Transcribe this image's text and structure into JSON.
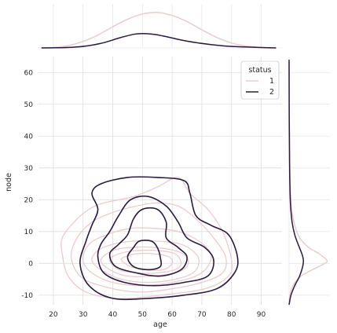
{
  "chart_data": {
    "type": "kde-joint",
    "xlabel": "age",
    "ylabel": "node",
    "xlim": [
      15,
      97
    ],
    "ylim": [
      -13,
      65
    ],
    "xticks": [
      20,
      30,
      40,
      50,
      60,
      70,
      80,
      90
    ],
    "yticks": [
      -10,
      0,
      10,
      20,
      30,
      40,
      50,
      60
    ],
    "grid": true,
    "legend": {
      "title": "status",
      "placement": "top-right",
      "entries": [
        "1",
        "2"
      ]
    },
    "colors": {
      "1": "#ebcccc",
      "2": "#2b1a3f"
    },
    "series": [
      {
        "name": "1",
        "contours": [
          [
            [
              23,
              3
            ],
            [
              25,
              -4
            ],
            [
              31,
              -9
            ],
            [
              42,
              -11
            ],
            [
              56,
              -10
            ],
            [
              71,
              -8
            ],
            [
              79,
              -4
            ],
            [
              80,
              1
            ],
            [
              77,
              10
            ],
            [
              72,
              17
            ],
            [
              66,
              22
            ],
            [
              62,
              27
            ],
            [
              55,
              24
            ],
            [
              47,
              21
            ],
            [
              37,
              19
            ],
            [
              32,
              17
            ],
            [
              27,
              13
            ],
            [
              23,
              8
            ]
          ],
          [
            [
              26,
              2
            ],
            [
              29,
              -4
            ],
            [
              36,
              -7
            ],
            [
              48,
              -9
            ],
            [
              60,
              -8
            ],
            [
              70,
              -6
            ],
            [
              77,
              -3
            ],
            [
              78,
              2
            ],
            [
              74,
              8
            ],
            [
              68,
              14
            ],
            [
              62,
              18
            ],
            [
              55,
              19
            ],
            [
              48,
              18
            ],
            [
              40,
              16
            ],
            [
              33,
              13
            ],
            [
              28,
              8
            ]
          ],
          [
            [
              30,
              1
            ],
            [
              33,
              -3
            ],
            [
              40,
              -6
            ],
            [
              50,
              -7
            ],
            [
              60,
              -6
            ],
            [
              68,
              -4
            ],
            [
              72,
              -1
            ],
            [
              73,
              3
            ],
            [
              69,
              7
            ],
            [
              62,
              10
            ],
            [
              54,
              11
            ],
            [
              46,
              11
            ],
            [
              38,
              9
            ],
            [
              32,
              6
            ]
          ],
          [
            [
              33,
              1
            ],
            [
              36,
              -2
            ],
            [
              43,
              -5
            ],
            [
              52,
              -6
            ],
            [
              61,
              -5
            ],
            [
              67,
              -3
            ],
            [
              69,
              0
            ],
            [
              68,
              3
            ],
            [
              63,
              6
            ],
            [
              55,
              7
            ],
            [
              47,
              7
            ],
            [
              40,
              6
            ],
            [
              35,
              4
            ]
          ],
          [
            [
              36,
              1
            ],
            [
              39,
              -2
            ],
            [
              45,
              -4
            ],
            [
              53,
              -4
            ],
            [
              61,
              -3
            ],
            [
              65,
              -1
            ],
            [
              65,
              2
            ],
            [
              61,
              4
            ],
            [
              54,
              5
            ],
            [
              46,
              5
            ],
            [
              40,
              4
            ]
          ],
          [
            [
              39,
              1
            ],
            [
              42,
              -2
            ],
            [
              48,
              -3
            ],
            [
              55,
              -3
            ],
            [
              61,
              -2
            ],
            [
              63,
              0
            ],
            [
              61,
              3
            ],
            [
              55,
              4
            ],
            [
              48,
              4
            ],
            [
              42,
              3
            ]
          ],
          [
            [
              43,
              1
            ],
            [
              46,
              -1
            ],
            [
              51,
              -2
            ],
            [
              57,
              -2
            ],
            [
              60,
              0
            ],
            [
              59,
              2
            ],
            [
              54,
              3
            ],
            [
              48,
              3
            ],
            [
              44,
              2
            ]
          ]
        ],
        "marginal_x": [
          [
            16,
            0
          ],
          [
            20,
            0.01
          ],
          [
            25,
            0.06
          ],
          [
            30,
            0.17
          ],
          [
            35,
            0.34
          ],
          [
            40,
            0.56
          ],
          [
            45,
            0.76
          ],
          [
            50,
            0.9
          ],
          [
            55,
            0.94
          ],
          [
            60,
            0.86
          ],
          [
            65,
            0.7
          ],
          [
            70,
            0.48
          ],
          [
            75,
            0.28
          ],
          [
            80,
            0.13
          ],
          [
            85,
            0.05
          ],
          [
            90,
            0.01
          ],
          [
            95,
            0
          ]
        ],
        "marginal_y": [
          [
            -13,
            0
          ],
          [
            -10,
            0.02
          ],
          [
            -7,
            0.1
          ],
          [
            -4,
            0.32
          ],
          [
            -2,
            0.62
          ],
          [
            0,
            0.95
          ],
          [
            1,
            1.0
          ],
          [
            3,
            0.8
          ],
          [
            5,
            0.52
          ],
          [
            8,
            0.28
          ],
          [
            12,
            0.15
          ],
          [
            16,
            0.08
          ],
          [
            22,
            0.04
          ],
          [
            30,
            0.02
          ],
          [
            40,
            0.01
          ],
          [
            52,
            0.005
          ],
          [
            64,
            0
          ]
        ]
      },
      {
        "name": "2",
        "contours": [
          [
            [
              29,
              0
            ],
            [
              32,
              -7
            ],
            [
              40,
              -11
            ],
            [
              52,
              -11
            ],
            [
              64,
              -10
            ],
            [
              75,
              -8
            ],
            [
              81,
              -3
            ],
            [
              82,
              2
            ],
            [
              79,
              9
            ],
            [
              73,
              12
            ],
            [
              68,
              15
            ],
            [
              66,
              22
            ],
            [
              64,
              26
            ],
            [
              55,
              27
            ],
            [
              45,
              27
            ],
            [
              36,
              25
            ],
            [
              33,
              22
            ],
            [
              35,
              17
            ],
            [
              33,
              12
            ],
            [
              31,
              7
            ]
          ],
          [
            [
              35,
              2
            ],
            [
              37,
              -3
            ],
            [
              44,
              -6
            ],
            [
              54,
              -7
            ],
            [
              64,
              -6
            ],
            [
              72,
              -4
            ],
            [
              74,
              1
            ],
            [
              71,
              5
            ],
            [
              65,
              8
            ],
            [
              62,
              13
            ],
            [
              58,
              18
            ],
            [
              52,
              21
            ],
            [
              46,
              20
            ],
            [
              42,
              15
            ],
            [
              39,
              10
            ],
            [
              36,
              6
            ]
          ],
          [
            [
              39,
              3
            ],
            [
              41,
              -1
            ],
            [
              48,
              -3
            ],
            [
              56,
              -4
            ],
            [
              63,
              -2
            ],
            [
              65,
              2
            ],
            [
              62,
              5
            ],
            [
              58,
              8
            ],
            [
              58,
              13
            ],
            [
              55,
              17
            ],
            [
              50,
              17
            ],
            [
              47,
              14
            ],
            [
              45,
              9
            ],
            [
              42,
              6
            ]
          ],
          [
            [
              45,
              2
            ],
            [
              47,
              -1
            ],
            [
              52,
              -2
            ],
            [
              56,
              -1
            ],
            [
              56,
              2
            ],
            [
              55,
              5
            ],
            [
              53,
              7
            ],
            [
              49,
              7
            ],
            [
              47,
              5
            ]
          ]
        ],
        "marginal_x": [
          [
            16,
            0
          ],
          [
            22,
            0.005
          ],
          [
            27,
            0.02
          ],
          [
            32,
            0.06
          ],
          [
            37,
            0.14
          ],
          [
            42,
            0.26
          ],
          [
            47,
            0.36
          ],
          [
            50,
            0.38
          ],
          [
            54,
            0.36
          ],
          [
            58,
            0.3
          ],
          [
            63,
            0.21
          ],
          [
            68,
            0.14
          ],
          [
            73,
            0.09
          ],
          [
            78,
            0.05
          ],
          [
            83,
            0.03
          ],
          [
            88,
            0.015
          ],
          [
            95,
            0
          ]
        ],
        "marginal_y": [
          [
            -13,
            0
          ],
          [
            -10,
            0.05
          ],
          [
            -7,
            0.15
          ],
          [
            -4,
            0.28
          ],
          [
            -1,
            0.36
          ],
          [
            1,
            0.38
          ],
          [
            3,
            0.34
          ],
          [
            6,
            0.24
          ],
          [
            9,
            0.15
          ],
          [
            13,
            0.08
          ],
          [
            18,
            0.04
          ],
          [
            25,
            0.02
          ],
          [
            35,
            0.01
          ],
          [
            50,
            0.003
          ],
          [
            64,
            0
          ]
        ]
      }
    ]
  }
}
